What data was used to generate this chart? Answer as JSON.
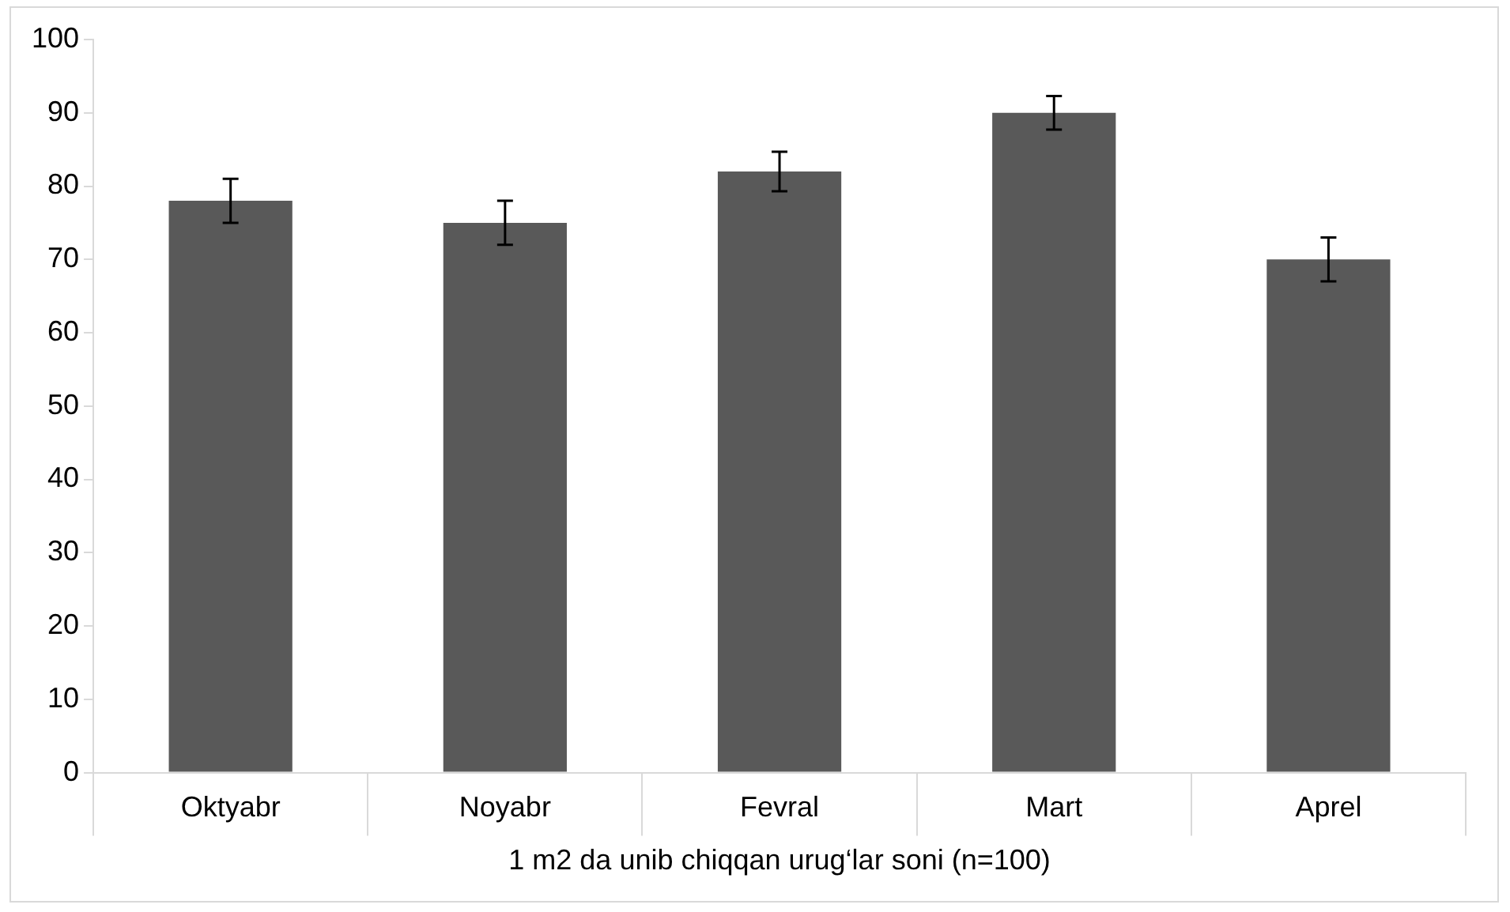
{
  "chart_data": {
    "type": "bar",
    "xlabel": "1 m2 da unib chiqqan urug‘lar soni (n=100)",
    "categories": [
      "Oktyabr",
      "Noyabr",
      "Fevral",
      "Mart",
      "Aprel"
    ],
    "values": [
      78,
      75,
      82,
      90,
      70
    ],
    "errors": [
      3,
      3,
      2.7,
      2.3,
      3
    ],
    "color": "#595959",
    "ylim": [
      0,
      100
    ],
    "yticks": [
      0,
      10,
      20,
      30,
      40,
      50,
      60,
      70,
      80,
      90,
      100
    ],
    "grid": false,
    "legend": false
  }
}
